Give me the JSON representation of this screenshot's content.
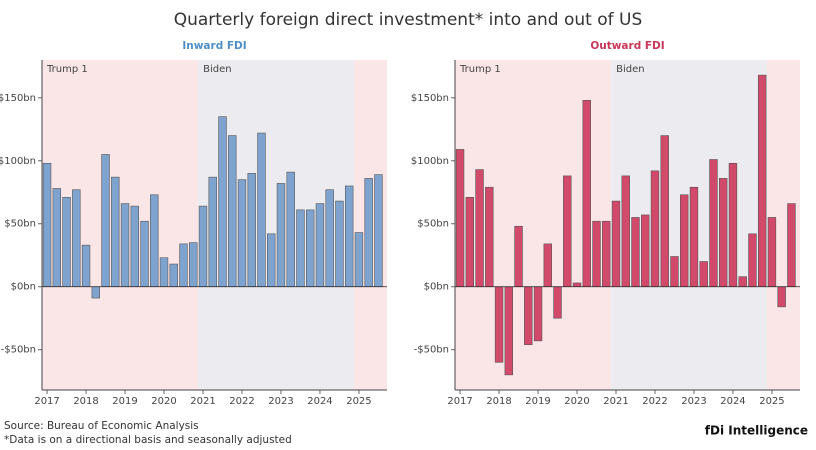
{
  "title": "Quarterly foreign direct investment* into and out of US",
  "source": "Source: Bureau of Economic Analysis",
  "note": "*Data is on a directional basis and seasonally adjusted",
  "logo": "fDi Intelligence",
  "chart_data": [
    {
      "type": "bar",
      "title": "Inward FDI",
      "title_color": "#4f8fc7",
      "color": "#7fa3cf",
      "x": [
        2017,
        2017.25,
        2017.5,
        2017.75,
        2018,
        2018.25,
        2018.5,
        2018.75,
        2019,
        2019.25,
        2019.5,
        2019.75,
        2020,
        2020.25,
        2020.5,
        2020.75,
        2021,
        2021.25,
        2021.5,
        2021.75,
        2022,
        2022.25,
        2022.5,
        2022.75,
        2023,
        2023.25,
        2023.5,
        2023.75,
        2024,
        2024.25,
        2024.5,
        2024.75,
        2025,
        2025.25,
        2025.5
      ],
      "values": [
        98,
        78,
        71,
        77,
        33,
        -9,
        105,
        87,
        66,
        64,
        52,
        73,
        23,
        18,
        34,
        35,
        64,
        87,
        135,
        120,
        85,
        90,
        122,
        42,
        82,
        91,
        61,
        61,
        66,
        77,
        68,
        80,
        43,
        86,
        89
      ],
      "xlim": [
        2016.87,
        2025.72
      ],
      "xticks": [
        2017,
        2018,
        2019,
        2020,
        2021,
        2022,
        2023,
        2024,
        2025
      ],
      "ylim": [
        -82,
        180
      ],
      "yticks": [
        {
          "value": -50,
          "label": "-$50bn"
        },
        {
          "value": 0,
          "label": "$0bn"
        },
        {
          "value": 50,
          "label": "$50bn"
        },
        {
          "value": 100,
          "label": "$100bn"
        },
        {
          "value": 150,
          "label": "$150bn"
        }
      ],
      "periods": [
        {
          "label": "Trump 1",
          "start": 2016.87,
          "end": 2020.875,
          "color": "#fbe6e7"
        },
        {
          "label": "Biden",
          "start": 2020.875,
          "end": 2024.875,
          "color": "#ececf0"
        },
        {
          "start": 2024.875,
          "end": 2025.72,
          "color": "#fbe6e7"
        }
      ]
    },
    {
      "type": "bar",
      "title": "Outward FDI",
      "title_color": "#c8365a",
      "color": "#d24a6b",
      "x": [
        2017,
        2017.25,
        2017.5,
        2017.75,
        2018,
        2018.25,
        2018.5,
        2018.75,
        2019,
        2019.25,
        2019.5,
        2019.75,
        2020,
        2020.25,
        2020.5,
        2020.75,
        2021,
        2021.25,
        2021.5,
        2021.75,
        2022,
        2022.25,
        2022.5,
        2022.75,
        2023,
        2023.25,
        2023.5,
        2023.75,
        2024,
        2024.25,
        2024.5,
        2024.75,
        2025,
        2025.25,
        2025.5
      ],
      "values": [
        109,
        71,
        93,
        79,
        -60,
        -70,
        48,
        -46,
        -43,
        34,
        -25,
        88,
        3,
        148,
        52,
        52,
        68,
        88,
        55,
        57,
        92,
        120,
        24,
        73,
        79,
        20,
        101,
        86,
        98,
        8,
        42,
        168,
        55,
        -16,
        66
      ],
      "xlim": [
        2016.87,
        2025.72
      ],
      "xticks": [
        2017,
        2018,
        2019,
        2020,
        2021,
        2022,
        2023,
        2024,
        2025
      ],
      "ylim": [
        -82,
        180
      ],
      "yticks": [
        {
          "value": -50,
          "label": "-$50bn"
        },
        {
          "value": 0,
          "label": "$0bn"
        },
        {
          "value": 50,
          "label": "$50bn"
        },
        {
          "value": 100,
          "label": "$100bn"
        },
        {
          "value": 150,
          "label": "$150bn"
        }
      ],
      "periods": [
        {
          "label": "Trump 1",
          "start": 2016.87,
          "end": 2020.875,
          "color": "#fbe6e7"
        },
        {
          "label": "Biden",
          "start": 2020.875,
          "end": 2024.875,
          "color": "#ececf0"
        },
        {
          "start": 2024.875,
          "end": 2025.72,
          "color": "#fbe6e7"
        }
      ]
    }
  ]
}
